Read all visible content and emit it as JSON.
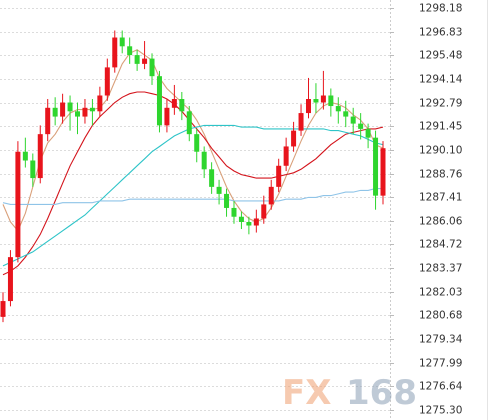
{
  "chart_data": {
    "type": "candlestick",
    "ylim": [
      1275.3,
      1298.18
    ],
    "yticks": [
      1298.18,
      1296.83,
      1295.48,
      1294.14,
      1292.79,
      1291.45,
      {
        "value": 1290.1,
        "label": "1290.10"
      },
      1288.76,
      1287.41,
      1286.06,
      1284.72,
      1283.37,
      1282.03,
      1280.68,
      1279.34,
      1277.99,
      1276.64,
      {
        "value": 1275.3,
        "label": "1275.30"
      }
    ],
    "grid": true,
    "up_color": "#e8141c",
    "down_color": "#2ed52e",
    "open": [
      1280.6,
      1281.5,
      1284.0,
      1290.0,
      1289.5,
      1288.5,
      1291.0,
      1292.5,
      1292.0,
      1292.8,
      1292.3,
      1292.0,
      1292.5,
      1292.3,
      1293.2,
      1294.8,
      1296.5,
      1296.0,
      1295.5,
      1295.0,
      1295.3,
      1294.3,
      1291.5,
      1292.5,
      1293.0,
      1292.3,
      1291.0,
      1290.0,
      1289.0,
      1288.0,
      1287.6,
      1286.8,
      1286.3,
      1286.0,
      1285.8,
      1286.2,
      1287.0,
      1288.0,
      1289.2,
      1290.3,
      1291.2,
      1292.2,
      1293.0,
      1292.8,
      1293.2,
      1292.6,
      1292.3,
      1292.0,
      1291.6,
      1291.3,
      1290.8,
      1287.5
    ],
    "high": [
      1282.0,
      1284.4,
      1290.6,
      1290.8,
      1289.9,
      1291.5,
      1293.0,
      1293.1,
      1293.3,
      1293.2,
      1292.8,
      1293.0,
      1293.0,
      1293.7,
      1295.3,
      1296.9,
      1296.9,
      1296.5,
      1295.8,
      1296.3,
      1295.6,
      1294.6,
      1293.0,
      1293.8,
      1293.4,
      1292.6,
      1291.3,
      1290.3,
      1289.4,
      1288.4,
      1287.9,
      1287.2,
      1286.6,
      1286.3,
      1286.7,
      1287.5,
      1288.4,
      1289.6,
      1290.8,
      1291.7,
      1292.7,
      1294.2,
      1293.9,
      1294.6,
      1293.6,
      1293.1,
      1292.9,
      1292.5,
      1292.2,
      1291.6,
      1291.2,
      1290.6
    ],
    "low": [
      1280.3,
      1281.2,
      1283.7,
      1289.1,
      1288.0,
      1288.2,
      1290.6,
      1291.5,
      1291.6,
      1291.2,
      1291.0,
      1291.6,
      1291.5,
      1292.0,
      1292.9,
      1294.5,
      1295.6,
      1295.0,
      1294.6,
      1294.7,
      1293.8,
      1291.1,
      1291.1,
      1292.1,
      1291.8,
      1290.6,
      1289.4,
      1288.5,
      1287.6,
      1287.0,
      1286.3,
      1285.9,
      1285.6,
      1285.3,
      1285.4,
      1285.9,
      1286.7,
      1287.7,
      1288.9,
      1290.0,
      1290.9,
      1291.9,
      1292.2,
      1292.4,
      1292.0,
      1291.6,
      1291.4,
      1291.0,
      1290.7,
      1290.2,
      1286.7,
      1287.0
    ],
    "close": [
      1281.5,
      1284.0,
      1290.0,
      1289.5,
      1288.5,
      1291.0,
      1292.5,
      1292.0,
      1292.8,
      1292.3,
      1292.0,
      1292.5,
      1292.3,
      1293.2,
      1294.8,
      1296.5,
      1296.0,
      1295.5,
      1295.0,
      1295.3,
      1294.3,
      1291.5,
      1292.5,
      1293.0,
      1292.3,
      1291.0,
      1290.0,
      1289.0,
      1288.0,
      1287.6,
      1286.8,
      1286.3,
      1286.0,
      1285.8,
      1286.2,
      1287.0,
      1288.0,
      1289.2,
      1290.3,
      1291.2,
      1292.2,
      1293.0,
      1292.8,
      1293.2,
      1292.6,
      1292.3,
      1292.0,
      1291.6,
      1291.3,
      1290.8,
      1287.5,
      1290.2
    ],
    "lines": [
      {
        "color": "#d9a07a",
        "values": [
          1287.0,
          1286.0,
          1285.5,
          1286.5,
          1288.0,
          1289.5,
          1290.5,
          1291.0,
          1291.7,
          1292.2,
          1292.4,
          1292.4,
          1292.4,
          1292.5,
          1293.0,
          1294.0,
          1295.0,
          1295.6,
          1295.8,
          1295.5,
          1295.2,
          1294.2,
          1293.6,
          1293.2,
          1292.8,
          1292.4,
          1291.8,
          1291.0,
          1290.0,
          1289.0,
          1288.0,
          1287.2,
          1286.6,
          1286.2,
          1286.0,
          1286.2,
          1286.8,
          1287.6,
          1288.6,
          1289.6,
          1290.6,
          1291.5,
          1292.2,
          1292.6,
          1292.8,
          1292.7,
          1292.5,
          1292.1,
          1291.8,
          1291.3,
          1290.4,
          1290.2
        ]
      },
      {
        "color": "#d4141c",
        "values": [
          1283.0,
          1283.2,
          1283.5,
          1284.0,
          1284.6,
          1285.3,
          1286.2,
          1287.2,
          1288.2,
          1289.2,
          1290.0,
          1290.8,
          1291.5,
          1292.0,
          1292.4,
          1292.8,
          1293.1,
          1293.3,
          1293.4,
          1293.4,
          1293.3,
          1293.2,
          1293.0,
          1292.7,
          1292.3,
          1291.8,
          1291.3,
          1290.8,
          1290.2,
          1289.7,
          1289.2,
          1288.9,
          1288.7,
          1288.6,
          1288.5,
          1288.5,
          1288.5,
          1288.6,
          1288.7,
          1288.8,
          1289.0,
          1289.3,
          1289.6,
          1290.0,
          1290.4,
          1290.7,
          1291.0,
          1291.1,
          1291.2,
          1291.3,
          1291.3,
          1291.4
        ]
      },
      {
        "color": "#2ec4c8",
        "values": [
          1283.5,
          1283.7,
          1283.9,
          1284.1,
          1284.3,
          1284.6,
          1284.9,
          1285.2,
          1285.5,
          1285.8,
          1286.1,
          1286.4,
          1286.8,
          1287.2,
          1287.6,
          1288.0,
          1288.4,
          1288.8,
          1289.2,
          1289.6,
          1290.0,
          1290.3,
          1290.6,
          1290.9,
          1291.1,
          1291.3,
          1291.4,
          1291.5,
          1291.5,
          1291.5,
          1291.5,
          1291.5,
          1291.4,
          1291.4,
          1291.4,
          1291.3,
          1291.3,
          1291.3,
          1291.3,
          1291.3,
          1291.3,
          1291.3,
          1291.3,
          1291.3,
          1291.2,
          1291.2,
          1291.1,
          1291.0,
          1290.9,
          1290.7,
          1290.5,
          1290.4
        ]
      },
      {
        "color": "#8fc4e8",
        "values": [
          1287.1,
          1287.0,
          1287.0,
          1287.0,
          1287.0,
          1287.0,
          1287.0,
          1287.0,
          1287.1,
          1287.1,
          1287.1,
          1287.1,
          1287.1,
          1287.2,
          1287.2,
          1287.2,
          1287.2,
          1287.3,
          1287.3,
          1287.3,
          1287.3,
          1287.3,
          1287.3,
          1287.3,
          1287.3,
          1287.3,
          1287.3,
          1287.3,
          1287.3,
          1287.3,
          1287.3,
          1287.2,
          1287.2,
          1287.2,
          1287.2,
          1287.2,
          1287.2,
          1287.2,
          1287.3,
          1287.3,
          1287.3,
          1287.4,
          1287.4,
          1287.5,
          1287.5,
          1287.6,
          1287.7,
          1287.7,
          1287.8,
          1287.8,
          1287.9,
          1287.9
        ]
      }
    ],
    "watermark_brand": "FX",
    "watermark_number": "168"
  }
}
